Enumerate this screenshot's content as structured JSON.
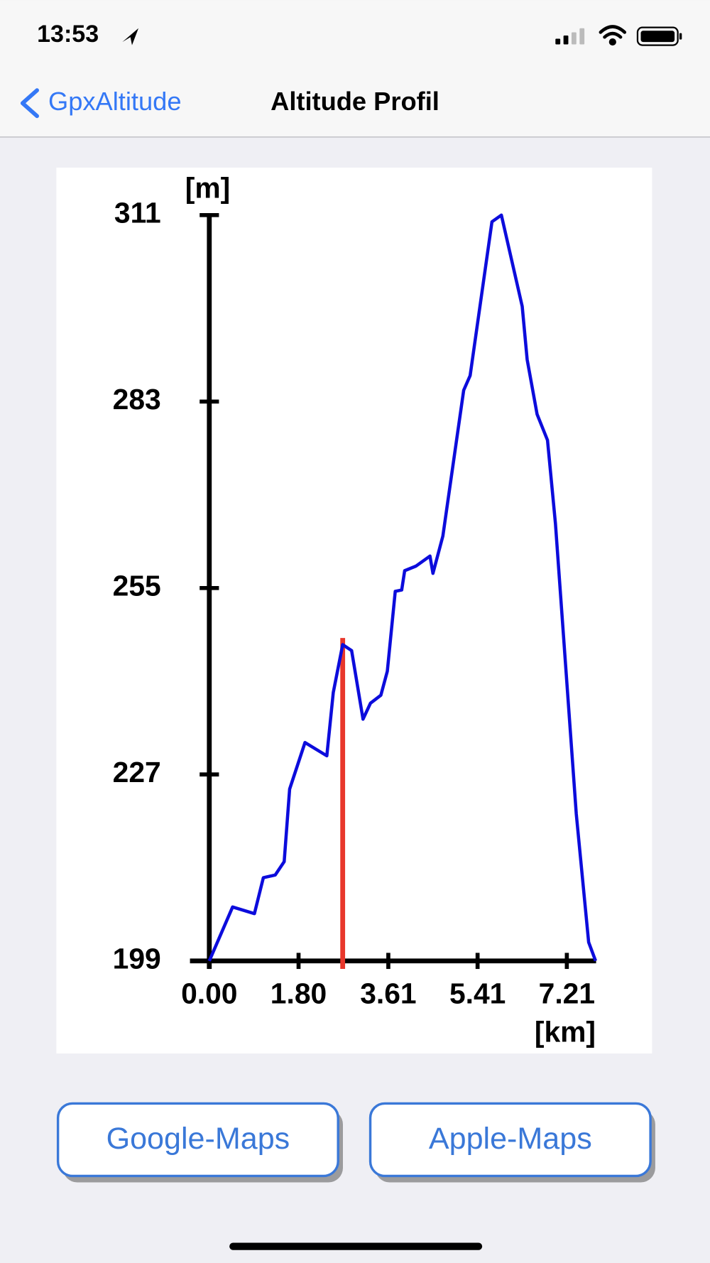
{
  "status_bar": {
    "time": "13:53"
  },
  "nav": {
    "back": "GpxAltitude",
    "title": "Altitude Profil"
  },
  "chart_data": {
    "type": "line",
    "y_label": "[m]",
    "x_label": "[km]",
    "x": [
      0,
      0.47,
      0.91,
      1.09,
      1.33,
      1.51,
      1.62,
      1.93,
      2.37,
      2.5,
      2.69,
      2.87,
      3.1,
      3.25,
      3.46,
      3.59,
      3.75,
      3.88,
      3.94,
      4.17,
      4.45,
      4.51,
      4.71,
      5.13,
      5.26,
      5.7,
      5.89,
      6.31,
      6.41,
      6.61,
      6.82,
      6.98,
      7.4,
      7.65,
      7.79
    ],
    "series": [
      {
        "color": "#0c0cdc",
        "values": [
          199,
          207.1,
          206.1,
          211.5,
          211.9,
          213.9,
          224.8,
          231.8,
          229.8,
          239.3,
          246.5,
          245.6,
          235.3,
          237.7,
          238.9,
          242.5,
          254.5,
          254.7,
          257.6,
          258.3,
          259.8,
          257.2,
          262.8,
          284.7,
          286.9,
          310,
          311,
          297.3,
          289.3,
          281.1,
          277.2,
          264.7,
          221.1,
          201.8,
          199
        ]
      }
    ],
    "xlim": [
      0,
      7.8
    ],
    "ylim": [
      199,
      311
    ],
    "xticks": [
      {
        "value": 0,
        "label": "0.00"
      },
      {
        "value": 1.8,
        "label": "1.80"
      },
      3.61,
      5.41,
      7.21
    ],
    "yticks": [
      199,
      227,
      255,
      283,
      311
    ],
    "marker": {
      "x": 2.69,
      "top": 247.5,
      "color": "#e8372b"
    }
  },
  "buttons": [
    "Google-Maps",
    "Apple-Maps"
  ]
}
